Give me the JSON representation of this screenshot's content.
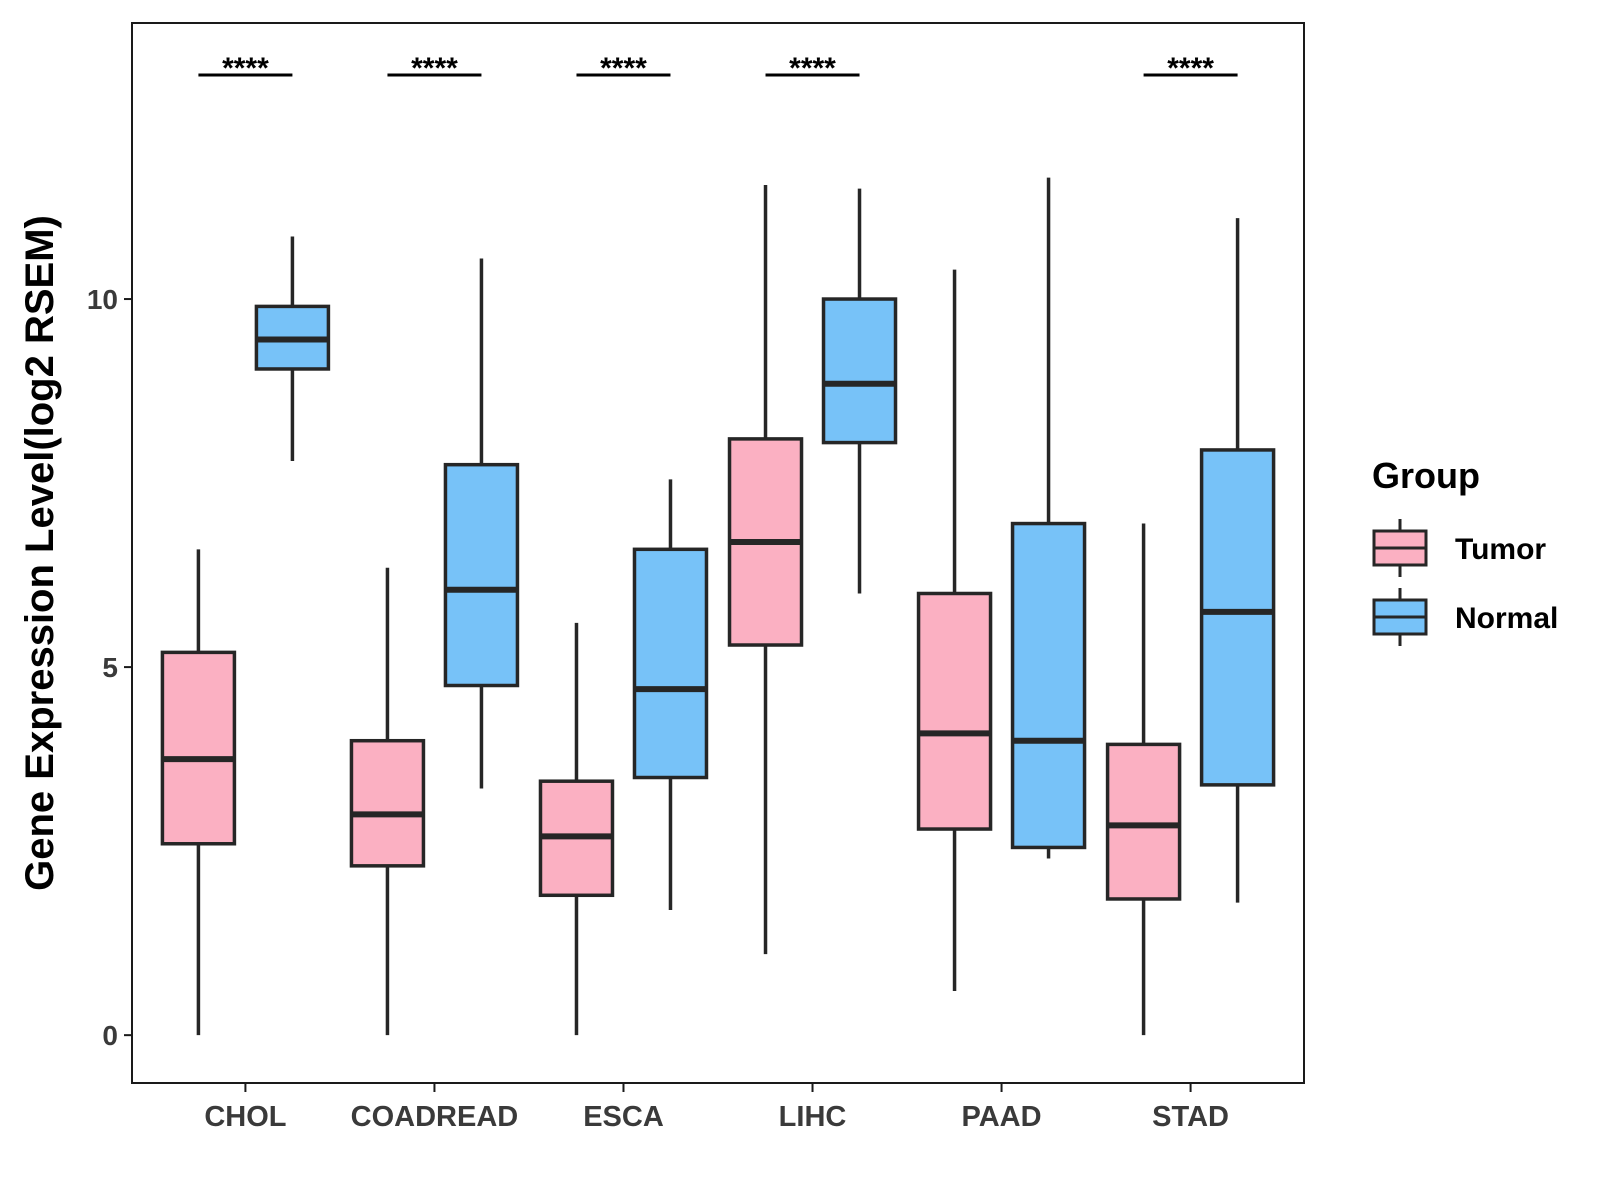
{
  "chart_data": {
    "type": "boxplot",
    "title": "",
    "xlabel": "",
    "ylabel": "Gene Expression Level(log2 RSEM)",
    "ylim": [
      -0.65,
      13.75
    ],
    "yticks": [
      0,
      5,
      10
    ],
    "categories": [
      "CHOL",
      "COADREAD",
      "ESCA",
      "LIHC",
      "PAAD",
      "STAD"
    ],
    "legend": {
      "title": "Group",
      "position": "right"
    },
    "series": [
      {
        "name": "Tumor",
        "color": "#FBB0C2",
        "boxes": [
          {
            "category": "CHOL",
            "min": 0.0,
            "q1": 2.6,
            "median": 3.75,
            "q3": 5.2,
            "max": 6.6
          },
          {
            "category": "COADREAD",
            "min": 0.0,
            "q1": 2.3,
            "median": 3.0,
            "q3": 4.0,
            "max": 6.35
          },
          {
            "category": "ESCA",
            "min": 0.0,
            "q1": 1.9,
            "median": 2.7,
            "q3": 3.45,
            "max": 5.6
          },
          {
            "category": "LIHC",
            "min": 1.1,
            "q1": 5.3,
            "median": 6.7,
            "q3": 8.1,
            "max": 11.55
          },
          {
            "category": "PAAD",
            "min": 0.6,
            "q1": 2.8,
            "median": 4.1,
            "q3": 6.0,
            "max": 10.4
          },
          {
            "category": "STAD",
            "min": 0.0,
            "q1": 1.85,
            "median": 2.85,
            "q3": 3.95,
            "max": 6.95
          }
        ]
      },
      {
        "name": "Normal",
        "color": "#77C2F8",
        "boxes": [
          {
            "category": "CHOL",
            "min": 7.8,
            "q1": 9.05,
            "median": 9.45,
            "q3": 9.9,
            "max": 10.85
          },
          {
            "category": "COADREAD",
            "min": 3.35,
            "q1": 4.75,
            "median": 6.05,
            "q3": 7.75,
            "max": 10.55
          },
          {
            "category": "ESCA",
            "min": 1.7,
            "q1": 3.5,
            "median": 4.7,
            "q3": 6.6,
            "max": 7.55
          },
          {
            "category": "LIHC",
            "min": 6.0,
            "q1": 8.05,
            "median": 8.85,
            "q3": 10.0,
            "max": 11.5
          },
          {
            "category": "PAAD",
            "min": 2.4,
            "q1": 2.55,
            "median": 4.0,
            "q3": 6.95,
            "max": 11.65
          },
          {
            "category": "STAD",
            "min": 1.8,
            "q1": 3.4,
            "median": 5.75,
            "q3": 7.95,
            "max": 11.1
          }
        ]
      }
    ],
    "significance": [
      {
        "category": "CHOL",
        "label": "****"
      },
      {
        "category": "COADREAD",
        "label": "****"
      },
      {
        "category": "ESCA",
        "label": "****"
      },
      {
        "category": "LIHC",
        "label": "****"
      },
      {
        "category": "STAD",
        "label": "****"
      }
    ]
  }
}
